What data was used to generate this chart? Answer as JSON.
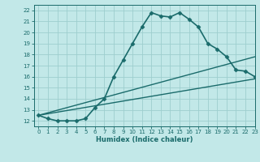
{
  "xlabel": "Humidex (Indice chaleur)",
  "background_color": "#c2e8e8",
  "line_color": "#1a6b6b",
  "grid_color": "#9ecece",
  "xlim": [
    -0.5,
    23
  ],
  "ylim": [
    11.5,
    22.5
  ],
  "xticks": [
    0,
    1,
    2,
    3,
    4,
    5,
    6,
    7,
    8,
    9,
    10,
    11,
    12,
    13,
    14,
    15,
    16,
    17,
    18,
    19,
    20,
    21,
    22,
    23
  ],
  "yticks": [
    12,
    13,
    14,
    15,
    16,
    17,
    18,
    19,
    20,
    21,
    22
  ],
  "series_main": {
    "x": [
      0,
      1,
      2,
      3,
      4,
      5,
      6,
      7,
      8,
      9,
      10,
      11,
      12,
      13,
      14,
      15,
      16,
      17,
      18,
      19,
      20,
      21,
      22,
      23
    ],
    "y": [
      12.5,
      12.2,
      12.0,
      12.0,
      12.0,
      12.2,
      13.2,
      14.0,
      16.0,
      17.5,
      19.0,
      20.5,
      21.8,
      21.5,
      21.4,
      21.8,
      21.2,
      20.5,
      19.0,
      18.5,
      17.8,
      16.6,
      16.5,
      16.0
    ],
    "marker": "D",
    "markersize": 2.5,
    "linewidth": 1.2
  },
  "series_line1": {
    "x": [
      0,
      23
    ],
    "y": [
      12.5,
      17.8
    ],
    "linewidth": 1.0
  },
  "series_line2": {
    "x": [
      0,
      23
    ],
    "y": [
      12.5,
      15.8
    ],
    "linewidth": 1.0
  },
  "tick_fontsize": 5.0,
  "xlabel_fontsize": 6.0
}
